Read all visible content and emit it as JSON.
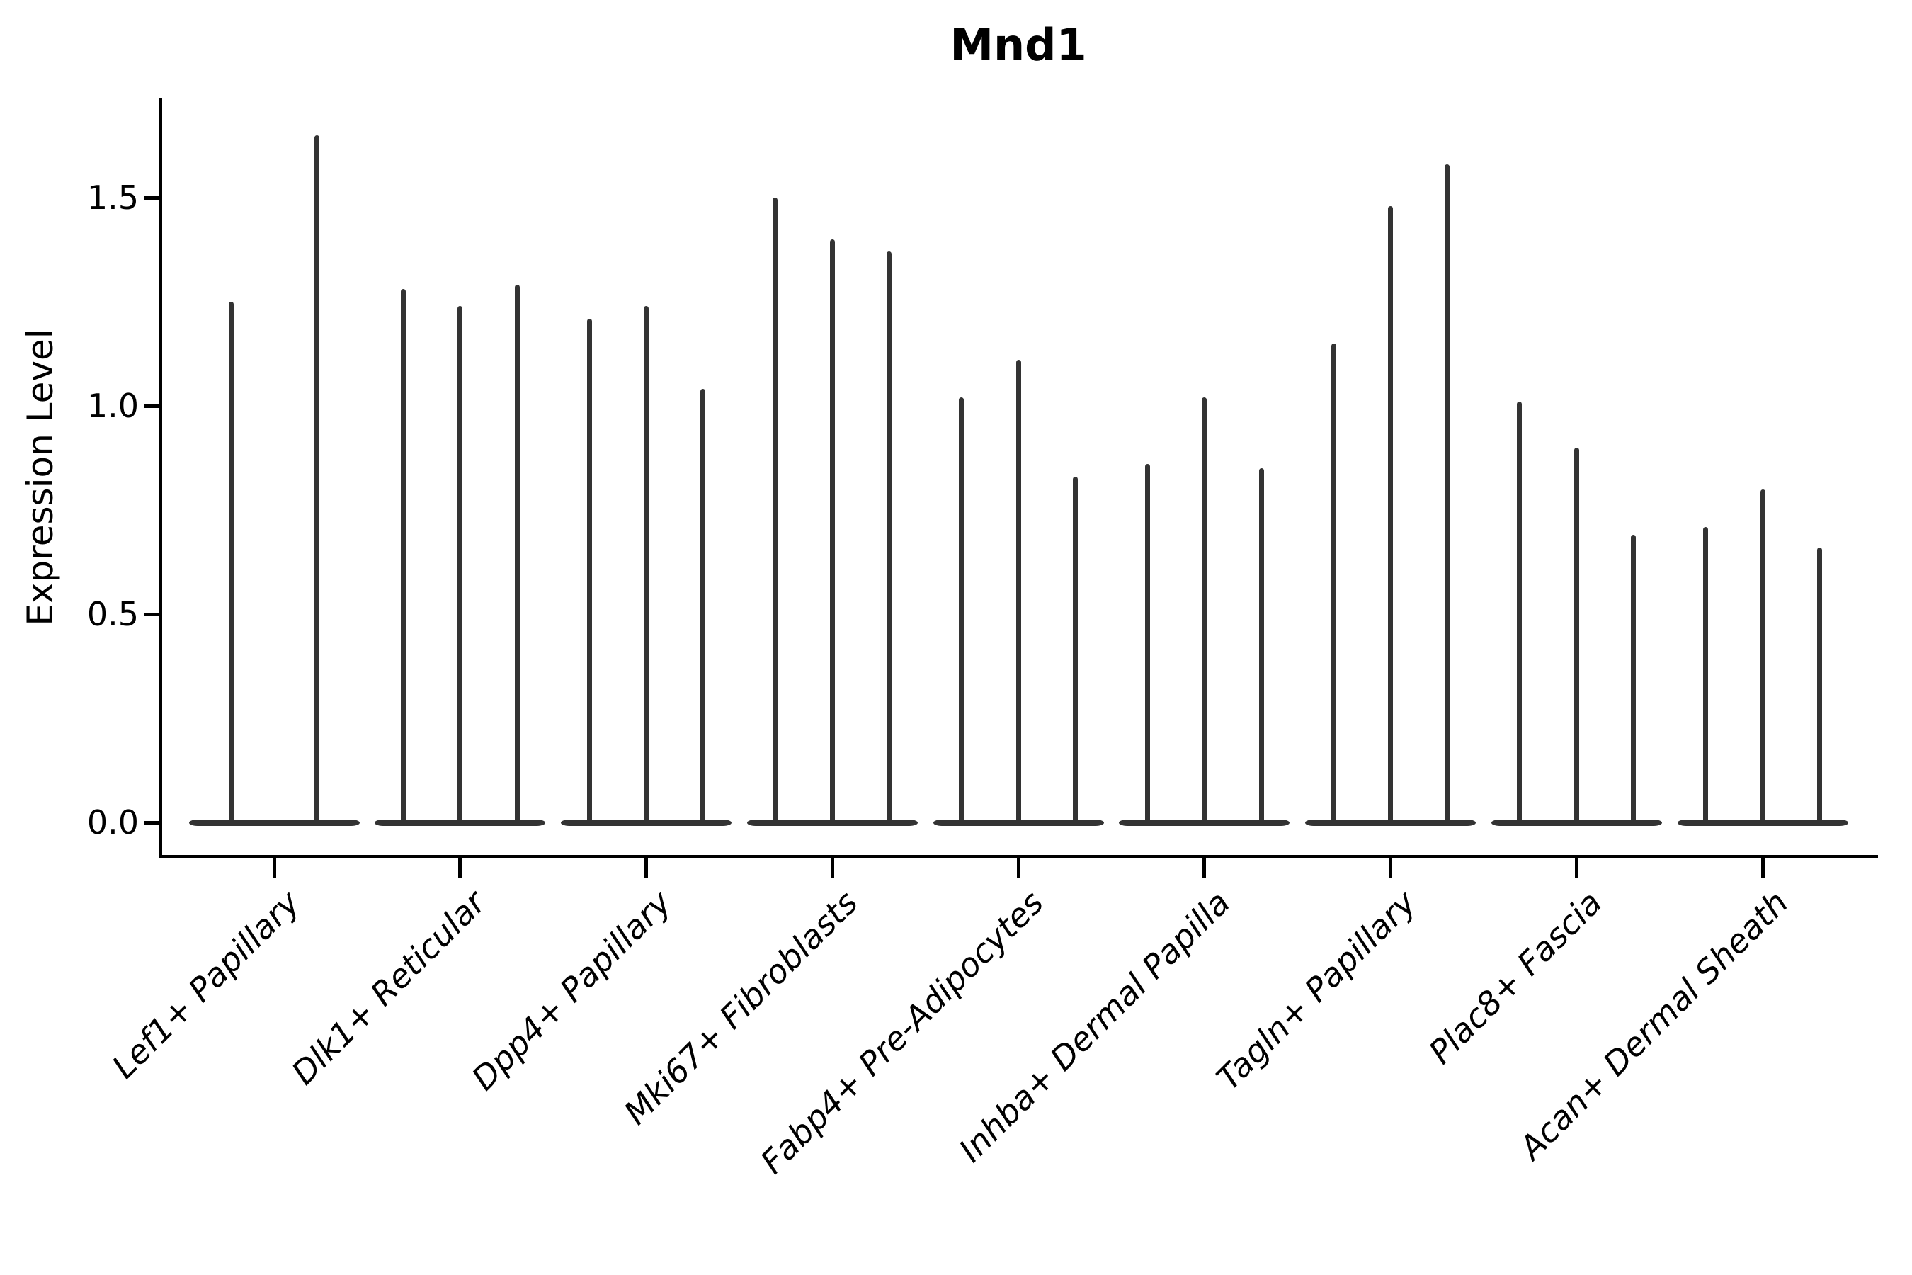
{
  "figure": {
    "title": "Mnd1",
    "ylabel": "Expression Level"
  },
  "colors": {
    "violin": "#333333",
    "axis": "#000000",
    "text": "#000000",
    "background": "#ffffff"
  },
  "chart_data": {
    "type": "violin",
    "title": "Mnd1",
    "xlabel": "",
    "ylabel": "Expression Level",
    "ylim": [
      -0.08,
      1.74
    ],
    "yticks": [
      0.0,
      0.5,
      1.0,
      1.5
    ],
    "grid": false,
    "legend": "none",
    "violin_style": "needle-thin violins; distribution mass concentrated at 0 with a vertical spike up to each maximum expression value",
    "categories": [
      "Lef1+ Papillary",
      "Dlk1+ Reticular",
      "Dpp4+ Papillary",
      "Mki67+ Fibroblasts",
      "Fabp4+ Pre-Adipocytes",
      "Inhba+ Dermal Papilla",
      "Tagln+ Papillary",
      "Plac8+ Fascia",
      "Acan+ Dermal Sheath"
    ],
    "groups": [
      {
        "label": "Lef1+ Papillary",
        "violin_max_expression": [
          1.25,
          1.65
        ]
      },
      {
        "label": "Dlk1+ Reticular",
        "violin_max_expression": [
          1.28,
          1.24,
          1.29
        ]
      },
      {
        "label": "Dpp4+ Papillary",
        "violin_max_expression": [
          1.21,
          1.24,
          1.04
        ]
      },
      {
        "label": "Mki67+ Fibroblasts",
        "violin_max_expression": [
          1.5,
          1.4,
          1.37
        ]
      },
      {
        "label": "Fabp4+ Pre-Adipocytes",
        "violin_max_expression": [
          1.02,
          1.11,
          0.83
        ]
      },
      {
        "label": "Inhba+ Dermal Papilla",
        "violin_max_expression": [
          0.86,
          1.02,
          0.85
        ]
      },
      {
        "label": "Tagln+ Papillary",
        "violin_max_expression": [
          1.15,
          1.48,
          1.58
        ]
      },
      {
        "label": "Plac8+ Fascia",
        "violin_max_expression": [
          1.01,
          0.9,
          0.69
        ]
      },
      {
        "label": "Acan+ Dermal Sheath",
        "violin_max_expression": [
          0.71,
          0.8,
          0.66
        ]
      }
    ]
  }
}
